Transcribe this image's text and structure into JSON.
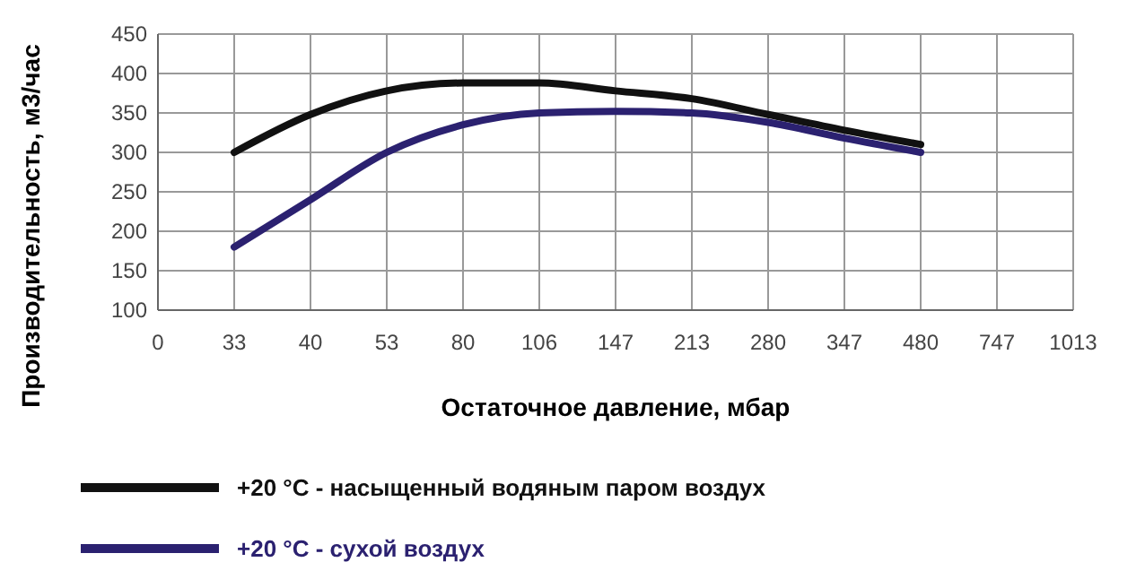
{
  "chart_data": {
    "type": "line",
    "xlabel": "Остаточное давление, мбар",
    "ylabel": "Производительность, м3/час",
    "categories": [
      "0",
      "33",
      "40",
      "53",
      "80",
      "106",
      "147",
      "213",
      "280",
      "347",
      "480",
      "747",
      "1013"
    ],
    "ylim": [
      100,
      450
    ],
    "yticks": [
      100,
      150,
      200,
      250,
      300,
      350,
      400,
      450
    ],
    "grid": true,
    "legend": "bottom",
    "marker": "none",
    "line_style": "solid",
    "series": [
      {
        "name": "+20 °C - насыщенный водяным паром воздух",
        "color": "#111111",
        "values": [
          null,
          300,
          348,
          378,
          388,
          388,
          378,
          368,
          348,
          328,
          310,
          null,
          null
        ]
      },
      {
        "name": "+20 °C - сухой воздух",
        "color": "#2b2170",
        "values": [
          null,
          180,
          240,
          300,
          335,
          350,
          352,
          350,
          338,
          318,
          300,
          null,
          null
        ]
      }
    ]
  }
}
